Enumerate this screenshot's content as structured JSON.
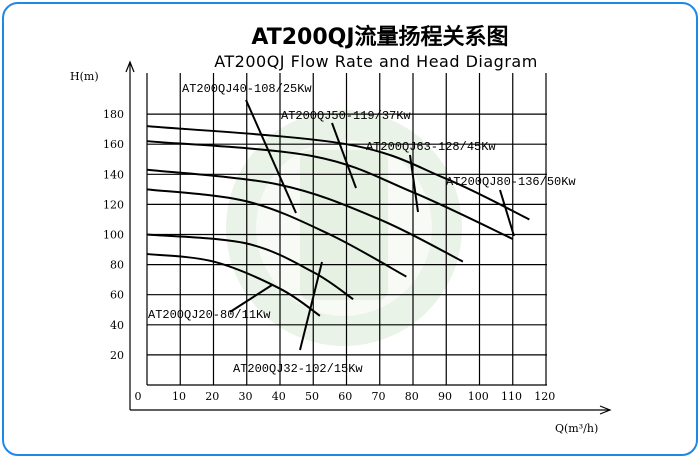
{
  "chart_data": {
    "type": "line",
    "title": "AT200QJ流量扬程关系图",
    "subtitle": "AT200QJ Flow Rate and Head Diagram",
    "ylabel": "H(m)",
    "xlabel": "Q(m³/h)",
    "xlim": [
      0,
      140
    ],
    "ylim": [
      -7,
      200
    ],
    "x_ticks": [
      0,
      10,
      20,
      30,
      40,
      50,
      60,
      70,
      80,
      90,
      100,
      110,
      120
    ],
    "y_ticks": [
      20,
      40,
      60,
      80,
      100,
      120,
      140,
      160,
      180
    ],
    "grid": true,
    "series": [
      {
        "name": "AT200QJ20-80/11Kw",
        "x": [
          0,
          20,
          40,
          52
        ],
        "y": [
          87,
          82,
          64,
          46
        ]
      },
      {
        "name": "AT200QJ32-102/15Kw",
        "x": [
          0,
          30,
          50,
          62
        ],
        "y": [
          100,
          94,
          75,
          57
        ]
      },
      {
        "name": "AT200QJ40-108/25Kw",
        "x": [
          0,
          30,
          55,
          78
        ],
        "y": [
          130,
          122,
          100,
          72
        ]
      },
      {
        "name": "AT200QJ50-119/37Kw",
        "x": [
          0,
          40,
          70,
          95
        ],
        "y": [
          143,
          133,
          110,
          82
        ]
      },
      {
        "name": "AT200QJ63-128/45Kw",
        "x": [
          0,
          50,
          80,
          110
        ],
        "y": [
          162,
          152,
          128,
          97
        ]
      },
      {
        "name": "AT200QJ80-136/50Kw",
        "x": [
          0,
          60,
          90,
          115
        ],
        "y": [
          172,
          160,
          137,
          110
        ]
      }
    ]
  }
}
